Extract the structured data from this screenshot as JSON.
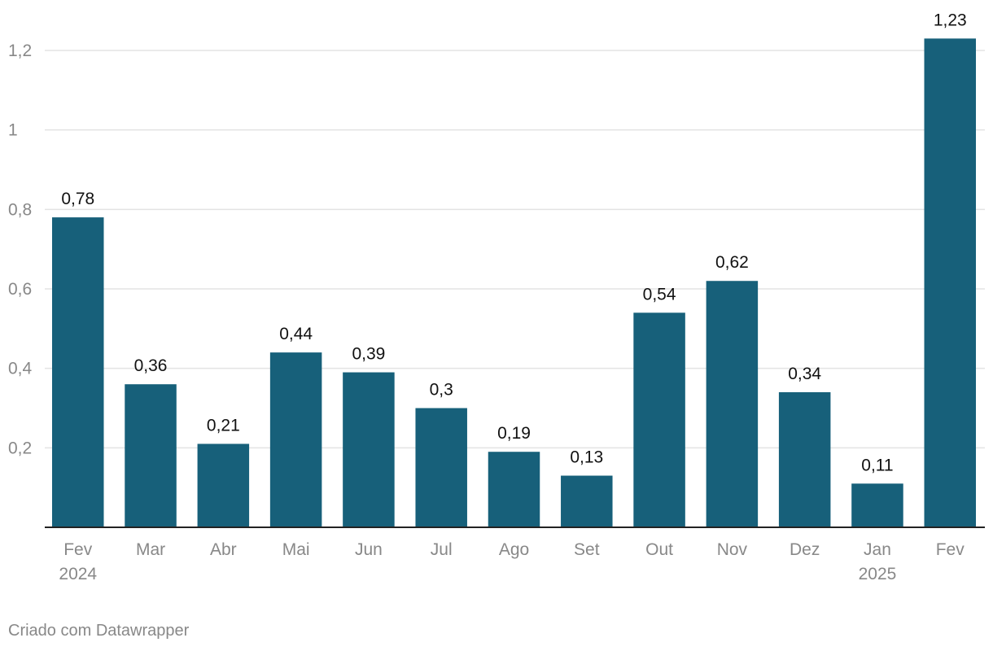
{
  "chart_data": {
    "type": "bar",
    "categories": [
      "Fev 2024",
      "Mar",
      "Abr",
      "Mai",
      "Jun",
      "Jul",
      "Ago",
      "Set",
      "Out",
      "Nov",
      "Dez",
      "Jan 2025",
      "Fev"
    ],
    "category_labels": [
      [
        "Fev",
        "2024"
      ],
      [
        "Mar"
      ],
      [
        "Abr"
      ],
      [
        "Mai"
      ],
      [
        "Jun"
      ],
      [
        "Jul"
      ],
      [
        "Ago"
      ],
      [
        "Set"
      ],
      [
        "Out"
      ],
      [
        "Nov"
      ],
      [
        "Dez"
      ],
      [
        "Jan",
        "2025"
      ],
      [
        "Fev"
      ]
    ],
    "values": [
      0.78,
      0.36,
      0.21,
      0.44,
      0.39,
      0.3,
      0.19,
      0.13,
      0.54,
      0.62,
      0.34,
      0.11,
      1.23
    ],
    "value_labels": [
      "0,78",
      "0,36",
      "0,21",
      "0,44",
      "0,39",
      "0,3",
      "0,19",
      "0,13",
      "0,54",
      "0,62",
      "0,34",
      "0,11",
      "1,23"
    ],
    "yticks": [
      0.2,
      0.4,
      0.6,
      0.8,
      1,
      1.2
    ],
    "ytick_labels": [
      "0,2",
      "0,4",
      "0,6",
      "0,8",
      "1",
      "1,2"
    ],
    "ylim": [
      0,
      1.2
    ],
    "title": "",
    "xlabel": "",
    "ylabel": "",
    "grid": true,
    "bar_color": "#17607a",
    "grid_color": "#e3e3e3",
    "axis_color": "#222222",
    "tick_label_color": "#888888",
    "value_label_color": "#111111"
  },
  "footer": {
    "credit": "Criado com Datawrapper"
  }
}
